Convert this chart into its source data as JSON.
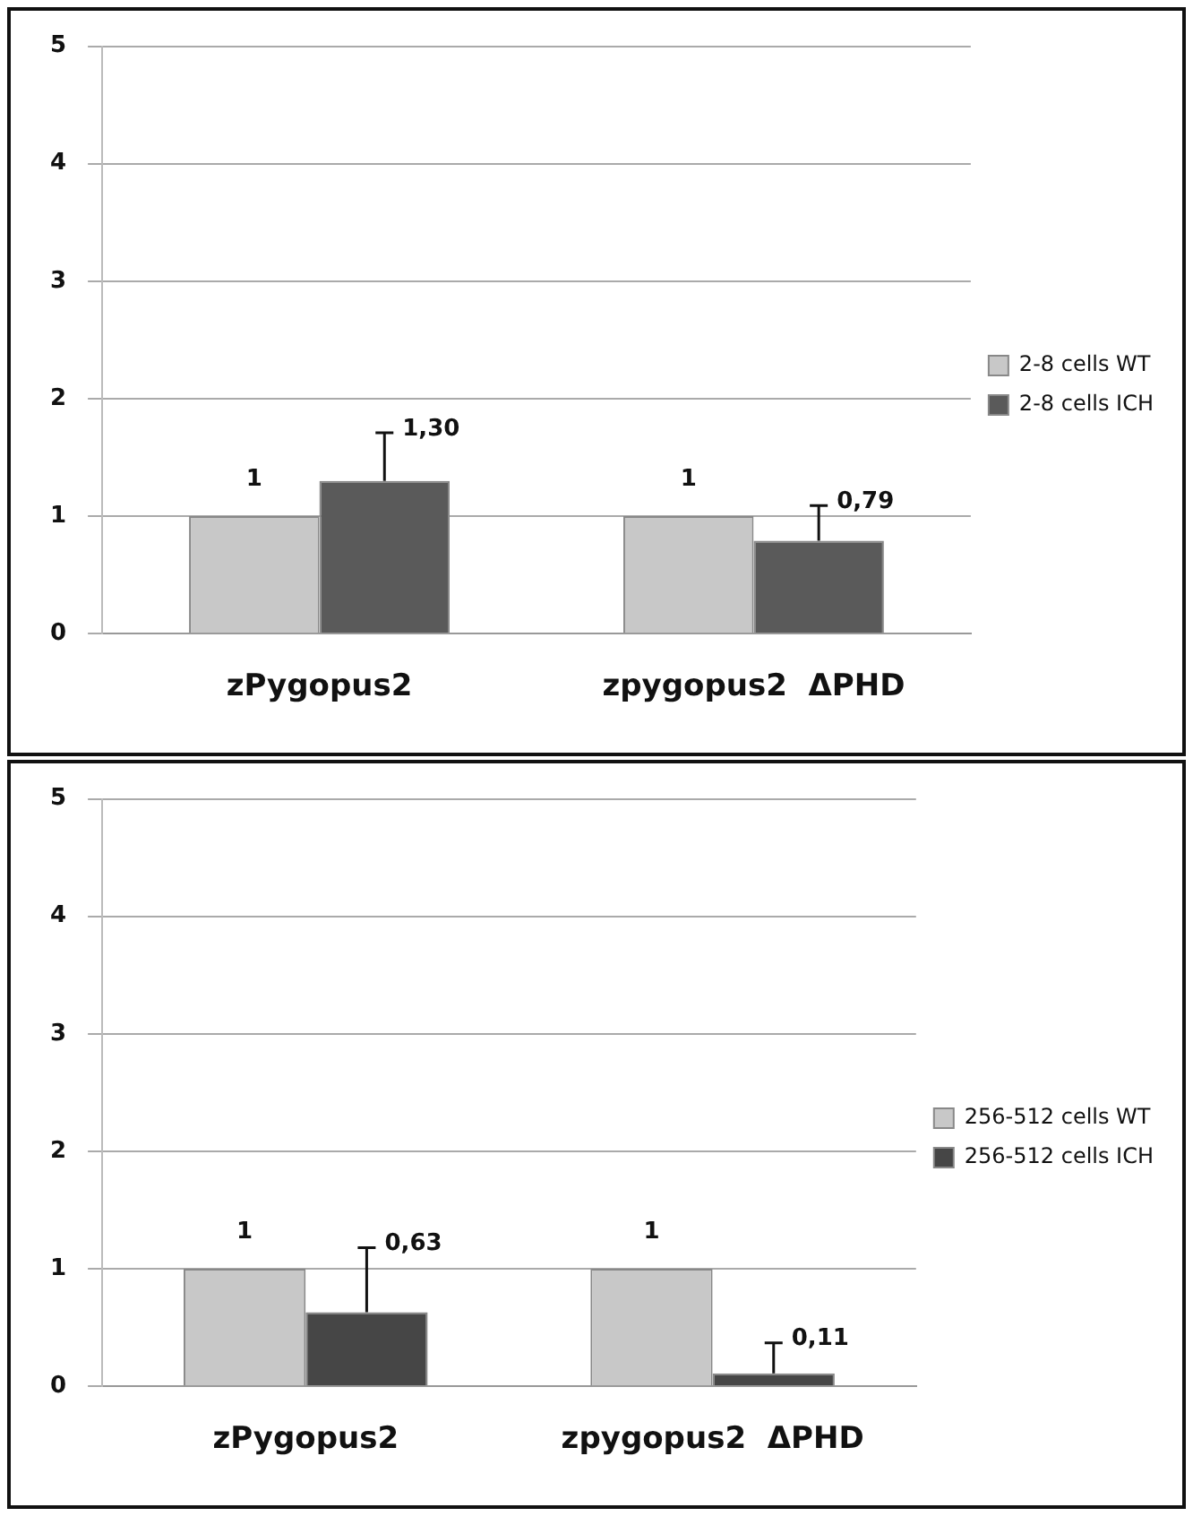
{
  "chart_data": [
    {
      "type": "bar",
      "categories": [
        "zPygopus2",
        "zpygopus2  ΔPHD"
      ],
      "ylim": [
        0,
        5
      ],
      "yticks": [
        0,
        1,
        2,
        3,
        4,
        5
      ],
      "grid": "y",
      "legend": "right",
      "series": [
        {
          "name": "2-8 cells WT",
          "color": "#c8c8c8",
          "values": [
            1,
            1
          ],
          "value_labels": [
            "1",
            "1"
          ]
        },
        {
          "name": "2-8 cells ICH",
          "color": "#5a5a5a",
          "values": [
            1.3,
            0.79
          ],
          "value_labels": [
            "1,30",
            "0,79"
          ],
          "errors": [
            [
              1.3,
              1.71
            ],
            [
              0.79,
              1.09
            ]
          ]
        }
      ]
    },
    {
      "type": "bar",
      "categories": [
        "zPygopus2",
        "zpygopus2  ΔPHD"
      ],
      "ylim": [
        0,
        5
      ],
      "yticks": [
        0,
        1,
        2,
        3,
        4,
        5
      ],
      "grid": "y",
      "legend": "right",
      "series": [
        {
          "name": "256-512 cells WT",
          "color": "#c8c8c8",
          "values": [
            1,
            1
          ],
          "value_labels": [
            "1",
            "1"
          ]
        },
        {
          "name": "256-512 cells ICH",
          "color": "#464646",
          "values": [
            0.63,
            0.11
          ],
          "value_labels": [
            "0,63",
            "0,11"
          ],
          "errors": [
            [
              0.63,
              1.18
            ],
            [
              0.11,
              0.37
            ]
          ]
        }
      ]
    }
  ]
}
